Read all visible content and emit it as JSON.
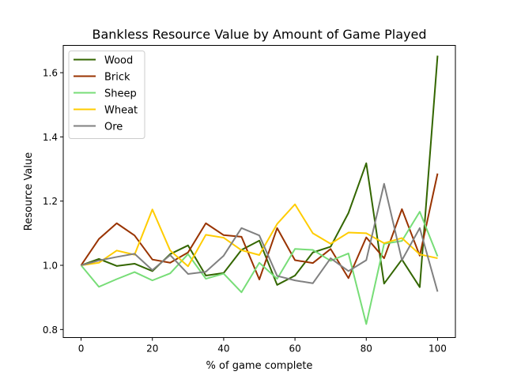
{
  "chart_data": {
    "type": "line",
    "title": "Bankless Resource Value by Amount of Game Played",
    "xlabel": "% of game complete",
    "ylabel": "Resource Value",
    "xlim": [
      -5,
      105
    ],
    "ylim": [
      0.775,
      1.685
    ],
    "xticks": [
      0,
      20,
      40,
      60,
      80,
      100
    ],
    "yticks": [
      0.8,
      1.0,
      1.2,
      1.4,
      1.6
    ],
    "grid": false,
    "legend_position": "top-left",
    "x": [
      0,
      5,
      10,
      15,
      20,
      25,
      30,
      35,
      40,
      45,
      50,
      55,
      60,
      65,
      70,
      75,
      80,
      85,
      90,
      95,
      100
    ],
    "series": [
      {
        "name": "Wood",
        "color": "#336600",
        "values": [
          1.0,
          1.02,
          0.998,
          1.005,
          0.982,
          1.035,
          1.062,
          0.968,
          0.976,
          1.048,
          1.077,
          0.939,
          0.968,
          1.04,
          1.058,
          1.163,
          1.318,
          0.943,
          1.018,
          0.932,
          1.653
        ]
      },
      {
        "name": "Brick",
        "color": "#993300",
        "values": [
          1.0,
          1.082,
          1.131,
          1.093,
          1.018,
          1.008,
          1.04,
          1.131,
          1.094,
          1.089,
          0.956,
          1.116,
          1.016,
          1.007,
          1.051,
          0.96,
          1.087,
          1.022,
          1.175,
          1.03,
          1.286
        ]
      },
      {
        "name": "Sheep",
        "color": "#77DD77",
        "values": [
          1.0,
          0.933,
          0.957,
          0.979,
          0.953,
          0.975,
          1.035,
          0.958,
          0.974,
          0.916,
          1.008,
          0.958,
          1.051,
          1.048,
          1.014,
          1.037,
          0.817,
          1.067,
          1.076,
          1.167,
          1.028
        ]
      },
      {
        "name": "Wheat",
        "color": "#FFCC00",
        "values": [
          1.0,
          1.008,
          1.046,
          1.033,
          1.174,
          1.046,
          0.997,
          1.095,
          1.086,
          1.047,
          1.032,
          1.129,
          1.19,
          1.1,
          1.067,
          1.102,
          1.1,
          1.069,
          1.085,
          1.034,
          1.022
        ]
      },
      {
        "name": "Ore",
        "color": "#808080",
        "values": [
          1.0,
          1.015,
          1.026,
          1.036,
          0.985,
          1.032,
          0.973,
          0.98,
          1.03,
          1.116,
          1.093,
          0.967,
          0.953,
          0.944,
          1.022,
          0.982,
          1.016,
          1.254,
          1.016,
          1.116,
          0.918
        ]
      }
    ]
  }
}
